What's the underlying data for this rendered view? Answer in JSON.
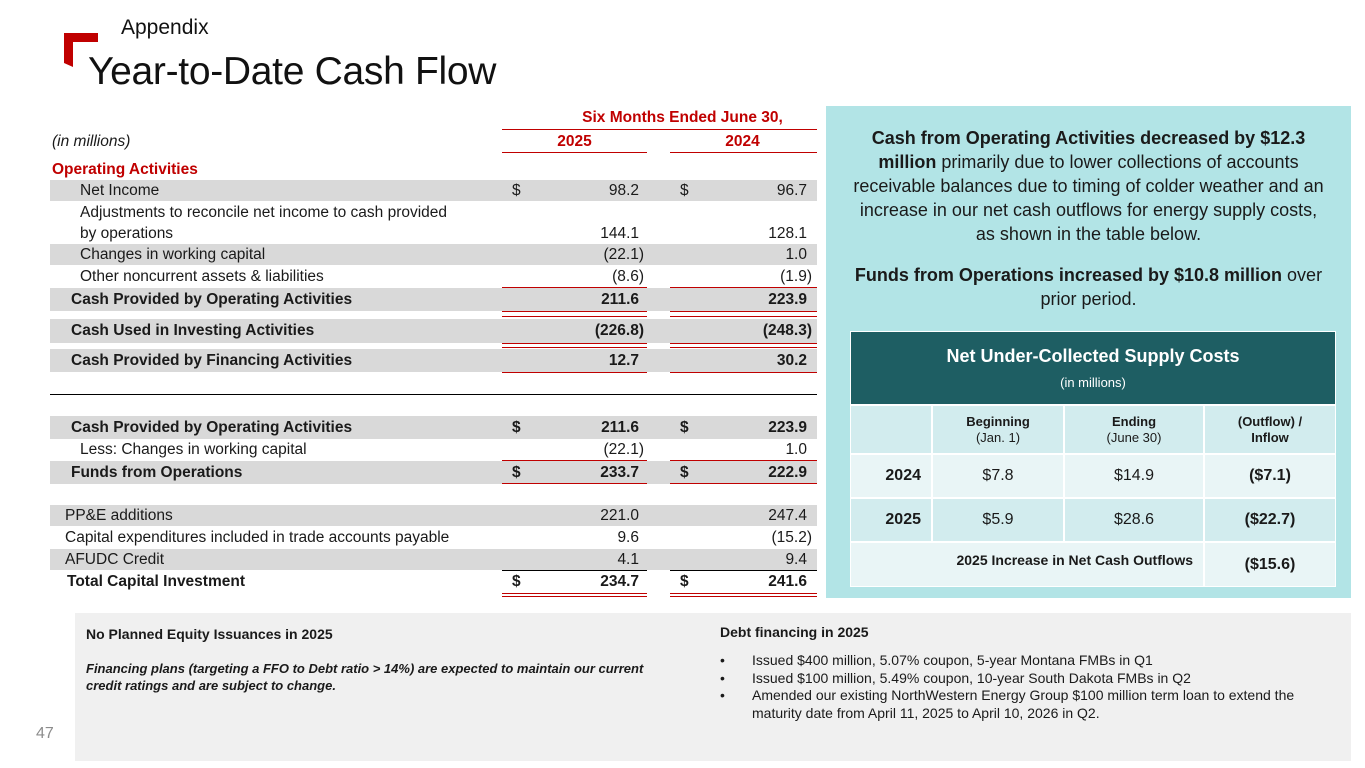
{
  "header": {
    "section": "Appendix",
    "title": "Year-to-Date Cash Flow"
  },
  "cash_flow": {
    "period_header": "Six Months Ended June 30,",
    "units": "(in millions)",
    "col_2025": "2025",
    "col_2024": "2024",
    "operating_heading": "Operating Activities",
    "rows": {
      "net_income": {
        "label": "Net Income",
        "cur": "$",
        "v2025": "98.2",
        "v2024": "96.7"
      },
      "adjustments": {
        "label_1": "Adjustments to reconcile net income to cash provided",
        "label_2": "by operations",
        "v2025": "144.1",
        "v2024": "128.1"
      },
      "working_capital": {
        "label": "Changes in working capital",
        "v2025": "(22.1)",
        "v2024": "1.0"
      },
      "other_noncurrent": {
        "label": "Other noncurrent assets & liabilities",
        "v2025": "(8.6)",
        "v2024": "(1.9)"
      },
      "cash_operating": {
        "label": "Cash Provided by Operating Activities",
        "v2025": "211.6",
        "v2024": "223.9"
      },
      "cash_investing": {
        "label": "Cash Used in Investing Activities",
        "v2025": "(226.8)",
        "v2024": "(248.3)"
      },
      "cash_financing": {
        "label": "Cash Provided by Financing Activities",
        "v2025": "12.7",
        "v2024": "30.2"
      },
      "cash_operating_2": {
        "label": "Cash Provided by Operating Activities",
        "cur": "$",
        "v2025": "211.6",
        "v2024": "223.9"
      },
      "less_working_capital": {
        "label": "Less: Changes in working capital",
        "v2025": "(22.1)",
        "v2024": "1.0"
      },
      "ffo": {
        "label": "Funds from Operations",
        "cur": "$",
        "v2025": "233.7",
        "v2024": "222.9"
      },
      "ppe": {
        "label": "PP&E additions",
        "v2025": "221.0",
        "v2024": "247.4"
      },
      "capex_payable": {
        "label": "Capital expenditures included in trade accounts payable",
        "v2025": "9.6",
        "v2024": "(15.2)"
      },
      "afudc": {
        "label": "AFUDC Credit",
        "v2025": "4.1",
        "v2024": "9.4"
      },
      "total_capital": {
        "label": "Total Capital Investment",
        "cur": "$",
        "v2025": "234.7",
        "v2024": "241.6"
      }
    }
  },
  "panel": {
    "para1_bold": "Cash from Operating Activities decreased by $12.3 million",
    "para1_rest": " primarily due to lower collections of accounts receivable balances due to timing of colder weather and an increase in our net cash outflows for energy supply costs, as shown in the table below.",
    "para2_bold": "Funds from Operations increased by $10.8 million",
    "para2_rest": " over prior period.",
    "table": {
      "title": "Net Under-Collected Supply Costs",
      "subtitle": "(in millions)",
      "col_beginning": "Beginning",
      "col_beginning_sub": "(Jan. 1)",
      "col_ending": "Ending",
      "col_ending_sub": "(June 30)",
      "col_flow": "(Outflow) /",
      "col_flow_sub": "Inflow",
      "rows": [
        {
          "year": "2024",
          "beginning": "$7.8",
          "ending": "$14.9",
          "flow": "($7.1)"
        },
        {
          "year": "2025",
          "beginning": "$5.9",
          "ending": "$28.6",
          "flow": "($22.7)"
        }
      ],
      "footer_label": "2025 Increase in Net Cash Outflows",
      "footer_value": "($15.6)"
    }
  },
  "notes": {
    "left_heading": "No Planned Equity Issuances in 2025",
    "left_body": "Financing plans (targeting a FFO to Debt ratio > 14%) are expected to maintain our current credit ratings and are subject to change.",
    "right_heading": "Debt financing in 2025",
    "bullets": [
      "Issued $400 million, 5.07% coupon, 5-year Montana FMBs in Q1",
      "Issued $100 million, 5.49% coupon, 10-year South Dakota FMBs in Q2",
      "Amended our existing NorthWestern Energy Group $100 million term loan to extend the maturity date from April 11, 2025 to April 10, 2026 in Q2."
    ]
  },
  "page_number": "47",
  "colors": {
    "accent_red": "#c00000",
    "panel_teal": "#b2e4e6",
    "table_header": "#1e5e63"
  }
}
